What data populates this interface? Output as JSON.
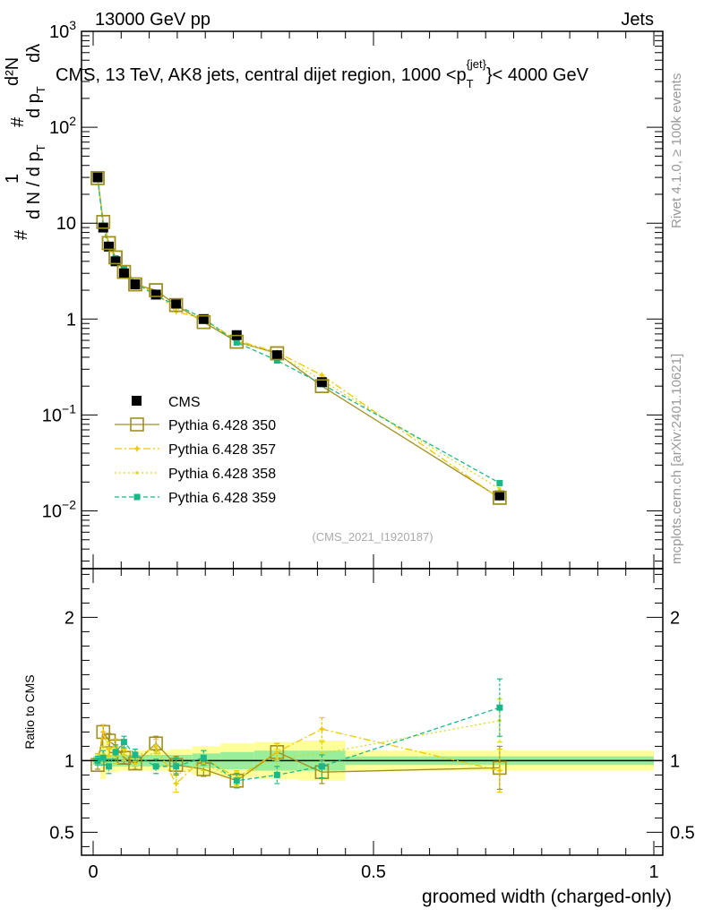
{
  "header": {
    "left": "13000 GeV pp",
    "right": "Jets"
  },
  "side_texts": {
    "rivet": "Rivet 4.1.0, ≥ 100k events",
    "mcplots": "mcplots.cern.ch [arXiv:2401.10621]"
  },
  "reference": "(CMS_2021_I1920187)",
  "chart_data": {
    "type": "line",
    "title_parts": {
      "main": "CMS, 13 TeV, AK8 jets, central dijet region, 1000 <p",
      "sub": "T",
      "sup": "{jet}",
      "tail": "}< 4000 GeV"
    },
    "ylabel_parts": {
      "hash1": "#",
      "one": "1",
      "dn": "d N / d p",
      "dn_sub": "T",
      "hash2": "#",
      "d2n": "d²N",
      "dpt": "d p",
      "dpt_sub": "T",
      "dlambda": "dλ"
    },
    "xlabel": "groomed width (charged-only)",
    "ratio_ylabel": "Ratio to CMS",
    "xlim": [
      0,
      1
    ],
    "ylim_log": [
      0.0025,
      1000
    ],
    "ratio_ylim": [
      0.34,
      2.34
    ],
    "x_ticks": [
      {
        "v": 0,
        "label": "0"
      },
      {
        "v": 0.5,
        "label": "0.5"
      },
      {
        "v": 1,
        "label": "1"
      }
    ],
    "y_ticks": [
      {
        "v": 0.01,
        "base": "10",
        "exp": "−2"
      },
      {
        "v": 0.1,
        "base": "10",
        "exp": "−1"
      },
      {
        "v": 1,
        "label": "1"
      },
      {
        "v": 10,
        "label": "10"
      },
      {
        "v": 100,
        "base": "10",
        "exp": "2"
      },
      {
        "v": 1000,
        "base": "10",
        "exp": "3"
      }
    ],
    "ratio_y_ticks": [
      {
        "v": 0.5,
        "label": "0.5"
      },
      {
        "v": 1,
        "label": "1"
      },
      {
        "v": 2,
        "label": "2"
      }
    ],
    "x": [
      0.008,
      0.018,
      0.028,
      0.04,
      0.055,
      0.075,
      0.112,
      0.148,
      0.197,
      0.256,
      0.328,
      0.408,
      0.725
    ],
    "cms": {
      "name": "CMS",
      "values": [
        30,
        9,
        5.7,
        4.0,
        3.0,
        2.3,
        1.8,
        1.45,
        1.0,
        0.68,
        0.42,
        0.22,
        0.0145
      ]
    },
    "bands": [
      {
        "x0": 0.0,
        "x1": 0.013,
        "in": 0.03,
        "out": 0.03
      },
      {
        "x0": 0.013,
        "x1": 0.023,
        "in": 0.035,
        "out": 0.13
      },
      {
        "x0": 0.023,
        "x1": 0.033,
        "in": 0.04,
        "out": 0.08
      },
      {
        "x0": 0.033,
        "x1": 0.047,
        "in": 0.04,
        "out": 0.08
      },
      {
        "x0": 0.047,
        "x1": 0.063,
        "in": 0.04,
        "out": 0.07
      },
      {
        "x0": 0.063,
        "x1": 0.087,
        "in": 0.04,
        "out": 0.07
      },
      {
        "x0": 0.087,
        "x1": 0.137,
        "in": 0.04,
        "out": 0.07
      },
      {
        "x0": 0.137,
        "x1": 0.177,
        "in": 0.04,
        "out": 0.08
      },
      {
        "x0": 0.177,
        "x1": 0.227,
        "in": 0.05,
        "out": 0.1
      },
      {
        "x0": 0.227,
        "x1": 0.287,
        "in": 0.06,
        "out": 0.12
      },
      {
        "x0": 0.287,
        "x1": 0.367,
        "in": 0.07,
        "out": 0.13
      },
      {
        "x0": 0.367,
        "x1": 0.45,
        "in": 0.07,
        "out": 0.14
      },
      {
        "x0": 0.45,
        "x1": 1.0,
        "in": 0.03,
        "out": 0.07
      }
    ],
    "series": [
      {
        "name": "Pythia 6.428 350",
        "color": "#a09020",
        "dash": "",
        "marker": "open-square",
        "values": [
          29.5,
          10.3,
          6.2,
          4.4,
          3.1,
          2.3,
          2.0,
          1.4,
          0.93,
          0.58,
          0.44,
          0.2,
          0.0137
        ],
        "ratio": [
          0.97,
          1.2,
          1.14,
          1.1,
          1.02,
          0.98,
          1.12,
          0.97,
          0.94,
          0.86,
          1.06,
          0.92,
          0.95
        ],
        "ratio_err": [
          0.03,
          0.05,
          0.05,
          0.05,
          0.04,
          0.04,
          0.05,
          0.06,
          0.05,
          0.05,
          0.06,
          0.08,
          0.15
        ]
      },
      {
        "name": "Pythia 6.428 357",
        "color": "#f0c800",
        "dash": "8,3,2,3",
        "marker": "star",
        "values": [
          30.5,
          9.8,
          6.0,
          4.2,
          3.2,
          2.3,
          1.9,
          1.2,
          1.0,
          0.6,
          0.45,
          0.26,
          0.0135
        ],
        "ratio": [
          1.02,
          1.2,
          1.08,
          1.1,
          1.08,
          1.02,
          1.1,
          0.84,
          1.02,
          0.88,
          1.06,
          1.22,
          0.93
        ],
        "ratio_err": [
          0.03,
          0.05,
          0.05,
          0.05,
          0.04,
          0.04,
          0.05,
          0.06,
          0.05,
          0.05,
          0.06,
          0.08,
          0.15
        ]
      },
      {
        "name": "Pythia 6.428 358",
        "color": "#d8d820",
        "dash": "2,3",
        "marker": "dot",
        "values": [
          30.2,
          9.5,
          5.9,
          4.1,
          3.1,
          2.35,
          1.85,
          1.3,
          0.98,
          0.59,
          0.43,
          0.23,
          0.017
        ],
        "ratio": [
          1.01,
          1.05,
          1.04,
          1.03,
          1.04,
          1.0,
          1.06,
          0.9,
          0.98,
          0.87,
          1.02,
          1.05,
          1.28
        ],
        "ratio_err": [
          0.03,
          0.05,
          0.05,
          0.05,
          0.04,
          0.04,
          0.05,
          0.06,
          0.05,
          0.05,
          0.06,
          0.08,
          0.15
        ]
      },
      {
        "name": "Pythia 6.428 359",
        "color": "#1ab888",
        "dash": "5,3",
        "marker": "filled-square",
        "values": [
          30.0,
          9.2,
          5.5,
          4.3,
          3.4,
          2.4,
          1.75,
          1.4,
          1.02,
          0.57,
          0.37,
          0.21,
          0.0195
        ],
        "ratio": [
          1.0,
          1.02,
          0.96,
          1.06,
          1.13,
          1.04,
          0.96,
          0.96,
          1.02,
          0.86,
          0.9,
          0.96,
          1.37
        ],
        "ratio_err": [
          0.03,
          0.05,
          0.05,
          0.05,
          0.04,
          0.04,
          0.05,
          0.06,
          0.05,
          0.05,
          0.06,
          0.08,
          0.2
        ]
      }
    ]
  }
}
